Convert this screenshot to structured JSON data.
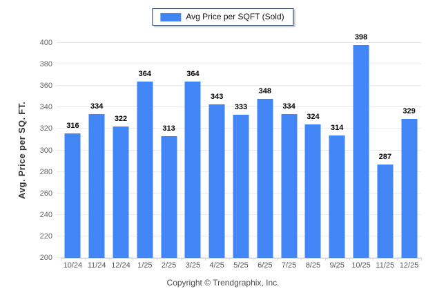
{
  "legend": {
    "label": "Avg Price per SQFT (Sold)",
    "swatch_color": "#4285F4"
  },
  "chart_data": {
    "type": "bar",
    "title": "",
    "xlabel": "",
    "ylabel": "Avg. Price per SQ. FT.",
    "categories": [
      "10/24",
      "11/24",
      "12/24",
      "1/25",
      "2/25",
      "3/25",
      "4/25",
      "5/25",
      "6/25",
      "7/25",
      "8/25",
      "9/25",
      "10/25",
      "11/25",
      "12/25"
    ],
    "series": [
      {
        "name": "Avg Price per SQFT (Sold)",
        "values": [
          316,
          334,
          322,
          364,
          313,
          364,
          343,
          333,
          348,
          334,
          324,
          314,
          398,
          287,
          329
        ]
      }
    ],
    "ylim": [
      200,
      400
    ],
    "yticks": [
      200,
      220,
      240,
      260,
      280,
      300,
      320,
      340,
      360,
      380,
      400
    ],
    "bar_color": "#4285F4",
    "grid": "horizontal",
    "legend_position": "top",
    "data_labels": "above-bars"
  },
  "footer": {
    "copyright": "Copyright © Trendgraphix, Inc."
  }
}
